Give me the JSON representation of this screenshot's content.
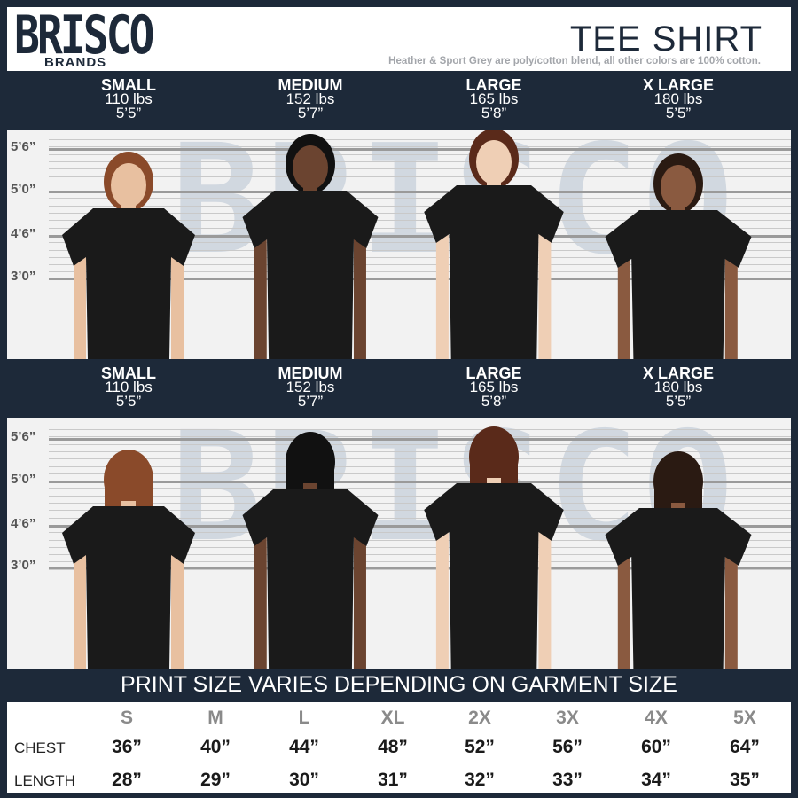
{
  "brand": {
    "logo_main": "BRISCO",
    "logo_sub": "BRANDS"
  },
  "header": {
    "title": "TEE SHIRT",
    "subtitle": "Heather & Sport Grey are poly/cotton blend, all other colors are 100% cotton."
  },
  "models": [
    {
      "size": "SMALL",
      "weight": "110 lbs",
      "height": "5’5”"
    },
    {
      "size": "MEDIUM",
      "weight": "152 lbs",
      "height": "5’7”"
    },
    {
      "size": "LARGE",
      "weight": "165 lbs",
      "height": "5’8”"
    },
    {
      "size": "X LARGE",
      "weight": "180 lbs",
      "height": "5’5”"
    }
  ],
  "height_marks": [
    "5’6”",
    "5’0”",
    "4’6”",
    "3’0”"
  ],
  "views": [
    "front",
    "back"
  ],
  "print_note": "PRINT SIZE VARIES DEPENDING ON GARMENT SIZE",
  "size_chart": {
    "sizes": [
      "S",
      "M",
      "L",
      "XL",
      "2X",
      "3X",
      "4X",
      "5X"
    ],
    "rows": [
      {
        "label": "CHEST",
        "values": [
          "36”",
          "40”",
          "44”",
          "48”",
          "52”",
          "56”",
          "60”",
          "64”"
        ]
      },
      {
        "label": "LENGTH",
        "values": [
          "28”",
          "29”",
          "30”",
          "31”",
          "32”",
          "33”",
          "34”",
          "35”"
        ]
      }
    ]
  },
  "colors": {
    "navy": "#1d2939",
    "shirt": "#1a1a1a"
  }
}
